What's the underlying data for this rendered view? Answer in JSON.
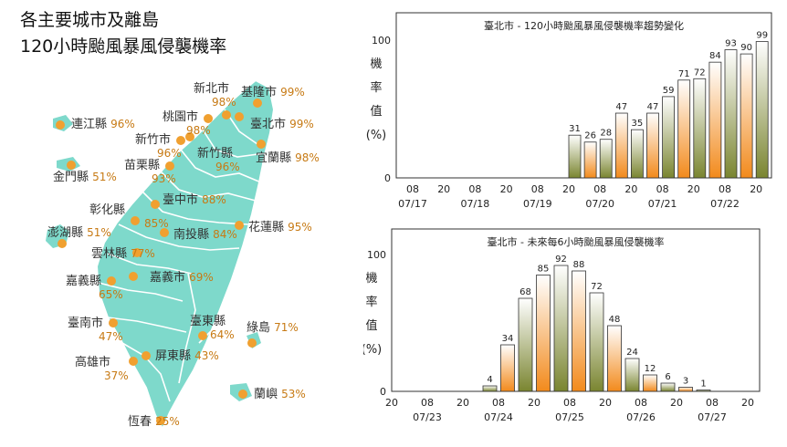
{
  "page": {
    "title_line1": "各主要城市及離島",
    "title_line2": "120小時颱風暴風侵襲機率"
  },
  "map": {
    "land_color": "#7ed9cb",
    "dot_color": "#f0a030",
    "percent_color": "#c77a14",
    "cities": [
      {
        "name": "基隆市",
        "pct": "99%"
      },
      {
        "name": "新北市",
        "pct": "98%"
      },
      {
        "name": "臺北市",
        "pct": "99%"
      },
      {
        "name": "桃園市",
        "pct": "98%"
      },
      {
        "name": "連江縣",
        "pct": "96%"
      },
      {
        "name": "新竹市",
        "pct": "96%"
      },
      {
        "name": "新竹縣",
        "pct": "96%"
      },
      {
        "name": "宜蘭縣",
        "pct": "98%"
      },
      {
        "name": "苗栗縣",
        "pct": "93%"
      },
      {
        "name": "金門縣",
        "pct": "51%"
      },
      {
        "name": "臺中市",
        "pct": "88%"
      },
      {
        "name": "彰化縣",
        "pct": "85%"
      },
      {
        "name": "南投縣",
        "pct": "84%"
      },
      {
        "name": "花蓮縣",
        "pct": "95%"
      },
      {
        "name": "澎湖縣",
        "pct": "51%"
      },
      {
        "name": "雲林縣",
        "pct": "77%"
      },
      {
        "name": "嘉義縣",
        "pct": "65%"
      },
      {
        "name": "嘉義市",
        "pct": "69%"
      },
      {
        "name": "臺南市",
        "pct": "47%"
      },
      {
        "name": "臺東縣",
        "pct": "64%"
      },
      {
        "name": "綠島",
        "pct": "71%"
      },
      {
        "name": "高雄市",
        "pct": "37%"
      },
      {
        "name": "屏東縣",
        "pct": "43%"
      },
      {
        "name": "蘭嶼",
        "pct": "53%"
      },
      {
        "name": "恆春",
        "pct": "25%"
      }
    ]
  },
  "chart_data": [
    {
      "type": "bar",
      "title": "臺北市 - 120小時颱風暴風侵襲機率趨勢變化",
      "ylabel": [
        "機",
        "率",
        "值",
        "(%)"
      ],
      "ylim": [
        0,
        100
      ],
      "yticks": [
        0,
        100
      ],
      "x_hour_labels": [
        "08",
        "20",
        "08",
        "20",
        "08",
        "20",
        "08",
        "20",
        "08",
        "20",
        "08",
        "20"
      ],
      "x_date_labels": [
        "07/17",
        "07/18",
        "07/19",
        "07/20",
        "07/21",
        "07/22"
      ],
      "values": [
        31,
        26,
        28,
        47,
        35,
        47,
        59,
        71,
        72,
        84,
        93,
        90,
        99
      ],
      "colors": {
        "olive": "#7a8530",
        "orange": "#f28a1c"
      }
    },
    {
      "type": "bar",
      "title": "臺北市 - 未來每6小時颱風暴風侵襲機率",
      "ylabel": [
        "機",
        "率",
        "值",
        "(%)"
      ],
      "ylim": [
        0,
        100
      ],
      "yticks": [
        0,
        100
      ],
      "x_hour_labels": [
        "20",
        "08",
        "20",
        "08",
        "20",
        "08",
        "20",
        "08",
        "20",
        "08",
        "20"
      ],
      "x_date_labels": [
        "07/23",
        "07/24",
        "07/25",
        "07/26",
        "07/27"
      ],
      "values": [
        4,
        34,
        68,
        85,
        92,
        88,
        72,
        48,
        24,
        12,
        6,
        3,
        1
      ],
      "colors": {
        "olive": "#7a8530",
        "orange": "#f28a1c"
      }
    }
  ]
}
